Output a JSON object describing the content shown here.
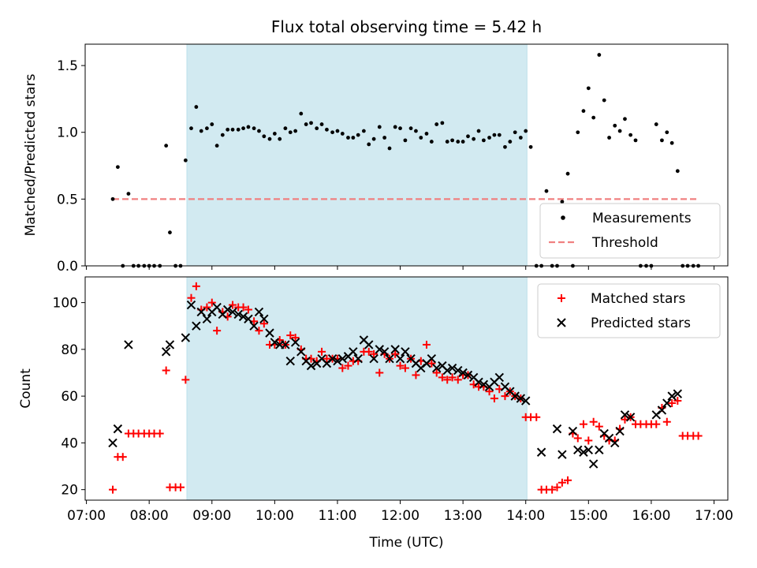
{
  "chart_data": [
    {
      "type": "scatter",
      "title": "Flux total observing time = 5.42 h",
      "ylabel": "Matched/Predicted stars",
      "xlabel": "",
      "xlim": [
        6.98,
        17.22
      ],
      "ylim": [
        0,
        1.66
      ],
      "yticks": [
        0,
        0.5,
        1.0,
        1.5
      ],
      "ytick_labels": [
        "0.0",
        "0.5",
        "1.0",
        "1.5"
      ],
      "shaded_region": [
        8.6,
        14.02
      ],
      "legend_position": "lower right",
      "series": [
        {
          "name": "Measurements",
          "marker": "dot",
          "color": "#000000",
          "x": [
            7.42,
            7.5,
            7.58,
            7.67,
            7.75,
            7.83,
            7.92,
            8.0,
            8.08,
            8.17,
            8.27,
            8.33,
            8.42,
            8.5,
            8.58,
            8.67,
            8.75,
            8.83,
            8.92,
            9.0,
            9.08,
            9.17,
            9.25,
            9.33,
            9.42,
            9.5,
            9.58,
            9.67,
            9.75,
            9.83,
            9.92,
            10.0,
            10.08,
            10.17,
            10.25,
            10.33,
            10.42,
            10.5,
            10.58,
            10.67,
            10.75,
            10.83,
            10.92,
            11.0,
            11.08,
            11.17,
            11.25,
            11.33,
            11.42,
            11.5,
            11.58,
            11.67,
            11.75,
            11.83,
            11.92,
            12.0,
            12.08,
            12.17,
            12.25,
            12.33,
            12.42,
            12.5,
            12.58,
            12.67,
            12.75,
            12.83,
            12.92,
            13.0,
            13.08,
            13.17,
            13.25,
            13.33,
            13.42,
            13.5,
            13.58,
            13.67,
            13.75,
            13.83,
            13.92,
            14.0,
            14.08,
            14.17,
            14.25,
            14.33,
            14.42,
            14.5,
            14.58,
            14.67,
            14.75,
            14.83,
            14.92,
            15.0,
            15.08,
            15.17,
            15.25,
            15.33,
            15.42,
            15.5,
            15.58,
            15.67,
            15.75,
            15.83,
            15.92,
            16.0,
            16.08,
            16.17,
            16.25,
            16.33,
            16.42,
            16.5,
            16.58,
            16.67,
            16.75
          ],
          "y": [
            0.5,
            0.74,
            0.0,
            0.54,
            0.0,
            0.0,
            0.0,
            0.0,
            0.0,
            0.0,
            0.9,
            0.25,
            0.0,
            0.0,
            0.79,
            1.03,
            1.19,
            1.01,
            1.03,
            1.06,
            0.9,
            0.98,
            1.02,
            1.02,
            1.02,
            1.03,
            1.04,
            1.03,
            1.01,
            0.97,
            0.95,
            0.99,
            0.95,
            1.03,
            1.0,
            1.01,
            1.14,
            1.06,
            1.07,
            1.03,
            1.06,
            1.02,
            1.0,
            1.01,
            0.99,
            0.96,
            0.96,
            0.98,
            1.01,
            0.91,
            0.95,
            1.04,
            0.96,
            0.88,
            1.04,
            1.03,
            0.94,
            1.03,
            1.01,
            0.96,
            0.99,
            0.93,
            1.06,
            1.07,
            0.93,
            0.94,
            0.93,
            0.93,
            0.97,
            0.95,
            1.01,
            0.94,
            0.96,
            0.98,
            0.98,
            0.89,
            0.93,
            1.0,
            0.96,
            1.01,
            0.89,
            0.0,
            0.0,
            0.56,
            0.0,
            0.0,
            0.48,
            0.69,
            0.0,
            1.0,
            1.16,
            1.33,
            1.11,
            1.58,
            1.24,
            0.96,
            1.05,
            1.01,
            1.1,
            0.98,
            0.94,
            0.0,
            0.0,
            0.0,
            1.06,
            0.94,
            1.0,
            0.92,
            0.71,
            0.0,
            0.0,
            0.0,
            0.0
          ]
        },
        {
          "name": "Threshold",
          "marker": "dashed-line",
          "color": "#f08080",
          "x": [
            7.42,
            16.75
          ],
          "y": [
            0.5,
            0.5
          ]
        }
      ]
    },
    {
      "type": "scatter",
      "title": "",
      "ylabel": "Count",
      "xlabel": "Time (UTC)",
      "xlim": [
        6.98,
        17.22
      ],
      "ylim": [
        15.5,
        111
      ],
      "yticks": [
        20,
        40,
        60,
        80,
        100
      ],
      "ytick_labels": [
        "20",
        "40",
        "60",
        "80",
        "100"
      ],
      "xticks": [
        7,
        8,
        9,
        10,
        11,
        12,
        13,
        14,
        15,
        16,
        17
      ],
      "xtick_labels": [
        "07:00",
        "08:00",
        "09:00",
        "10:00",
        "11:00",
        "12:00",
        "13:00",
        "14:00",
        "15:00",
        "16:00",
        "17:00"
      ],
      "shaded_region": [
        8.6,
        14.02
      ],
      "legend_position": "upper right",
      "series": [
        {
          "name": "Matched stars",
          "marker": "plus",
          "color": "#ff0000",
          "x": [
            7.42,
            7.5,
            7.58,
            7.67,
            7.75,
            7.83,
            7.92,
            8.0,
            8.08,
            8.17,
            8.27,
            8.33,
            8.42,
            8.5,
            8.58,
            8.67,
            8.75,
            8.83,
            8.92,
            9.0,
            9.08,
            9.17,
            9.25,
            9.33,
            9.42,
            9.5,
            9.58,
            9.67,
            9.75,
            9.83,
            9.92,
            10.0,
            10.08,
            10.17,
            10.25,
            10.33,
            10.42,
            10.5,
            10.58,
            10.67,
            10.75,
            10.83,
            10.92,
            11.0,
            11.08,
            11.17,
            11.25,
            11.33,
            11.42,
            11.5,
            11.58,
            11.67,
            11.75,
            11.83,
            11.92,
            12.0,
            12.08,
            12.17,
            12.25,
            12.33,
            12.42,
            12.5,
            12.58,
            12.67,
            12.75,
            12.83,
            12.92,
            13.0,
            13.08,
            13.17,
            13.25,
            13.33,
            13.42,
            13.5,
            13.58,
            13.67,
            13.75,
            13.83,
            13.92,
            14.0,
            14.08,
            14.17,
            14.25,
            14.33,
            14.42,
            14.5,
            14.58,
            14.67,
            14.75,
            14.83,
            14.92,
            15.0,
            15.08,
            15.17,
            15.25,
            15.33,
            15.42,
            15.5,
            15.58,
            15.67,
            15.75,
            15.83,
            15.92,
            16.0,
            16.08,
            16.17,
            16.25,
            16.33,
            16.42,
            16.5,
            16.58,
            16.67,
            16.75
          ],
          "y": [
            20,
            34,
            34,
            44,
            44,
            44,
            44,
            44,
            44,
            44,
            71,
            21,
            21,
            21,
            67,
            102,
            107,
            97,
            98,
            100,
            88,
            96,
            94,
            99,
            98,
            98,
            97,
            92,
            88,
            91,
            82,
            82,
            84,
            82,
            86,
            85,
            80,
            76,
            76,
            75,
            79,
            76,
            76,
            76,
            72,
            73,
            75,
            75,
            79,
            79,
            78,
            70,
            78,
            76,
            78,
            73,
            72,
            76,
            69,
            75,
            82,
            74,
            70,
            68,
            67,
            68,
            67,
            69,
            69,
            65,
            64,
            64,
            62,
            59,
            63,
            60,
            62,
            60,
            59,
            51,
            51,
            51,
            20,
            20,
            20,
            21,
            23,
            24,
            44,
            42,
            48,
            41,
            49,
            47,
            43,
            41,
            41,
            46,
            50,
            51,
            48,
            48,
            48,
            48,
            48,
            55,
            49,
            57,
            58,
            43,
            43,
            43,
            43
          ],
          "shown_count": 106
        },
        {
          "name": "Predicted stars",
          "marker": "cross",
          "color": "#000000",
          "x": [
            7.42,
            7.5,
            7.67,
            8.27,
            8.33,
            8.58,
            8.67,
            8.75,
            8.83,
            8.92,
            9.0,
            9.08,
            9.17,
            9.25,
            9.33,
            9.42,
            9.5,
            9.58,
            9.67,
            9.75,
            9.83,
            9.92,
            10.0,
            10.08,
            10.17,
            10.25,
            10.33,
            10.42,
            10.5,
            10.58,
            10.67,
            10.75,
            10.83,
            10.92,
            11.0,
            11.08,
            11.17,
            11.25,
            11.33,
            11.42,
            11.5,
            11.58,
            11.67,
            11.75,
            11.83,
            11.92,
            12.0,
            12.08,
            12.17,
            12.25,
            12.33,
            12.42,
            12.5,
            12.58,
            12.67,
            12.75,
            12.83,
            12.92,
            13.0,
            13.08,
            13.17,
            13.25,
            13.33,
            13.42,
            13.5,
            13.58,
            13.67,
            13.75,
            13.83,
            13.92,
            14.0,
            14.25,
            14.5,
            14.58,
            14.75,
            14.83,
            14.92,
            15.0,
            15.08,
            15.17,
            15.25,
            15.33,
            15.42,
            15.5,
            15.58,
            15.67,
            16.08,
            16.17,
            16.25,
            16.33,
            16.42
          ],
          "y": [
            40,
            46,
            82,
            79,
            82,
            85,
            99,
            90,
            96,
            93,
            96,
            98,
            95,
            97,
            96,
            95,
            94,
            93,
            90,
            96,
            93,
            87,
            83,
            82,
            82,
            75,
            83,
            79,
            75,
            73,
            74,
            76,
            74,
            76,
            75,
            76,
            77,
            79,
            76,
            84,
            82,
            76,
            80,
            79,
            76,
            80,
            76,
            79,
            76,
            74,
            72,
            74,
            76,
            72,
            73,
            71,
            72,
            71,
            70,
            69,
            68,
            66,
            65,
            64,
            66,
            68,
            64,
            62,
            60,
            59,
            58,
            36,
            46,
            35,
            45,
            37,
            36,
            37,
            31,
            37,
            44,
            42,
            40,
            45,
            52,
            51,
            52,
            54,
            57,
            60,
            61
          ],
          "shown_count": 91
        }
      ]
    }
  ]
}
